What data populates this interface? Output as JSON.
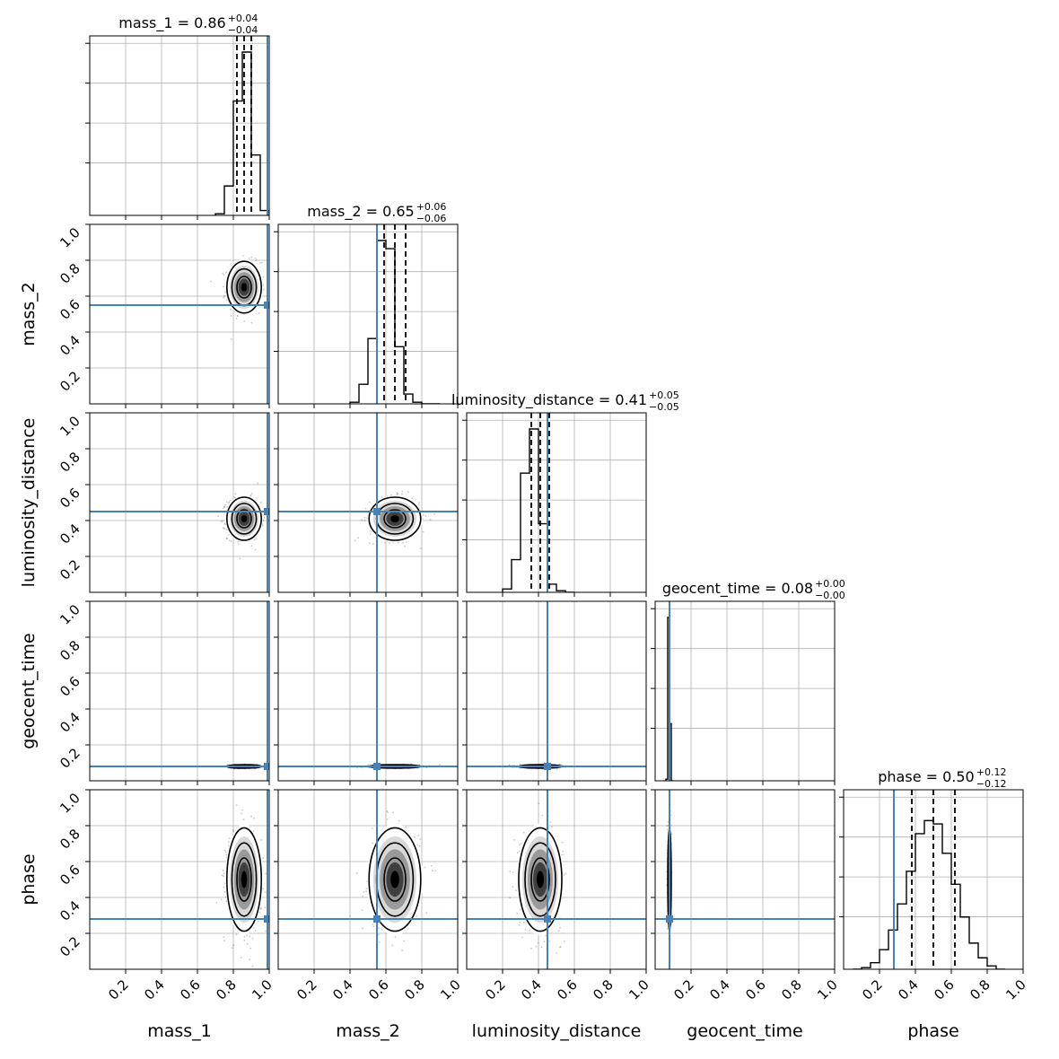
{
  "chart_data": {
    "type": "corner",
    "parameters": [
      "mass_1",
      "mass_2",
      "luminosity_distance",
      "geocent_time",
      "phase"
    ],
    "axis_range": [
      0,
      1
    ],
    "ticks": [
      "0.2",
      "0.4",
      "0.6",
      "0.8",
      "1.0"
    ],
    "tick_values": [
      0.2,
      0.4,
      0.6,
      0.8,
      1.0
    ],
    "truth_values": [
      0.99,
      0.55,
      0.45,
      0.08,
      0.28
    ],
    "truth_color": "#4682b4",
    "grid": true,
    "titles": [
      {
        "label": "mass_1 = 0.86",
        "plus": "+0.04",
        "minus": "−0.04"
      },
      {
        "label": "mass_2 = 0.65",
        "plus": "+0.06",
        "minus": "−0.06"
      },
      {
        "label": "luminosity_distance = 0.41",
        "plus": "+0.05",
        "minus": "−0.05"
      },
      {
        "label": "geocent_time = 0.08",
        "plus": "+0.00",
        "minus": "−0.00"
      },
      {
        "label": "phase = 0.50",
        "plus": "+0.12",
        "minus": "−0.12"
      }
    ],
    "posteriors": [
      {
        "median": 0.86,
        "q16": 0.82,
        "q84": 0.9,
        "sigma": 0.04
      },
      {
        "median": 0.65,
        "q16": 0.59,
        "q84": 0.71,
        "sigma": 0.06
      },
      {
        "median": 0.41,
        "q16": 0.36,
        "q84": 0.46,
        "sigma": 0.05
      },
      {
        "median": 0.08,
        "q16": 0.08,
        "q84": 0.08,
        "sigma": 0.004
      },
      {
        "median": 0.5,
        "q16": 0.38,
        "q84": 0.62,
        "sigma": 0.12
      }
    ],
    "histograms": [
      {
        "bins": [
          0.7,
          0.75,
          0.8,
          0.85,
          0.9,
          0.95,
          1.0
        ],
        "counts": [
          0.01,
          0.18,
          0.7,
          1.0,
          0.37,
          0.03
        ]
      },
      {
        "bins": [
          0.4,
          0.45,
          0.5,
          0.55,
          0.6,
          0.65,
          0.7,
          0.75,
          0.8,
          0.85,
          0.9
        ],
        "counts": [
          0.01,
          0.12,
          0.4,
          1.0,
          0.95,
          0.35,
          0.06,
          0.01,
          0.0,
          0.0
        ]
      },
      {
        "bins": [
          0.2,
          0.25,
          0.3,
          0.35,
          0.4,
          0.45,
          0.5,
          0.55,
          0.6
        ],
        "counts": [
          0.02,
          0.2,
          0.73,
          1.0,
          0.42,
          0.05,
          0.01,
          0.0
        ]
      },
      {
        "bins": [
          0.06,
          0.07,
          0.08,
          0.09,
          0.1
        ],
        "counts": [
          0.01,
          1.0,
          0.35,
          0.0
        ]
      },
      {
        "bins": [
          0.05,
          0.1,
          0.15,
          0.2,
          0.25,
          0.3,
          0.35,
          0.4,
          0.45,
          0.5,
          0.55,
          0.6,
          0.65,
          0.7,
          0.75,
          0.8,
          0.85,
          0.9
        ],
        "counts": [
          0.0,
          0.01,
          0.04,
          0.12,
          0.24,
          0.4,
          0.6,
          0.83,
          0.91,
          0.89,
          0.71,
          0.52,
          0.32,
          0.16,
          0.07,
          0.02,
          0.0
        ]
      }
    ]
  }
}
